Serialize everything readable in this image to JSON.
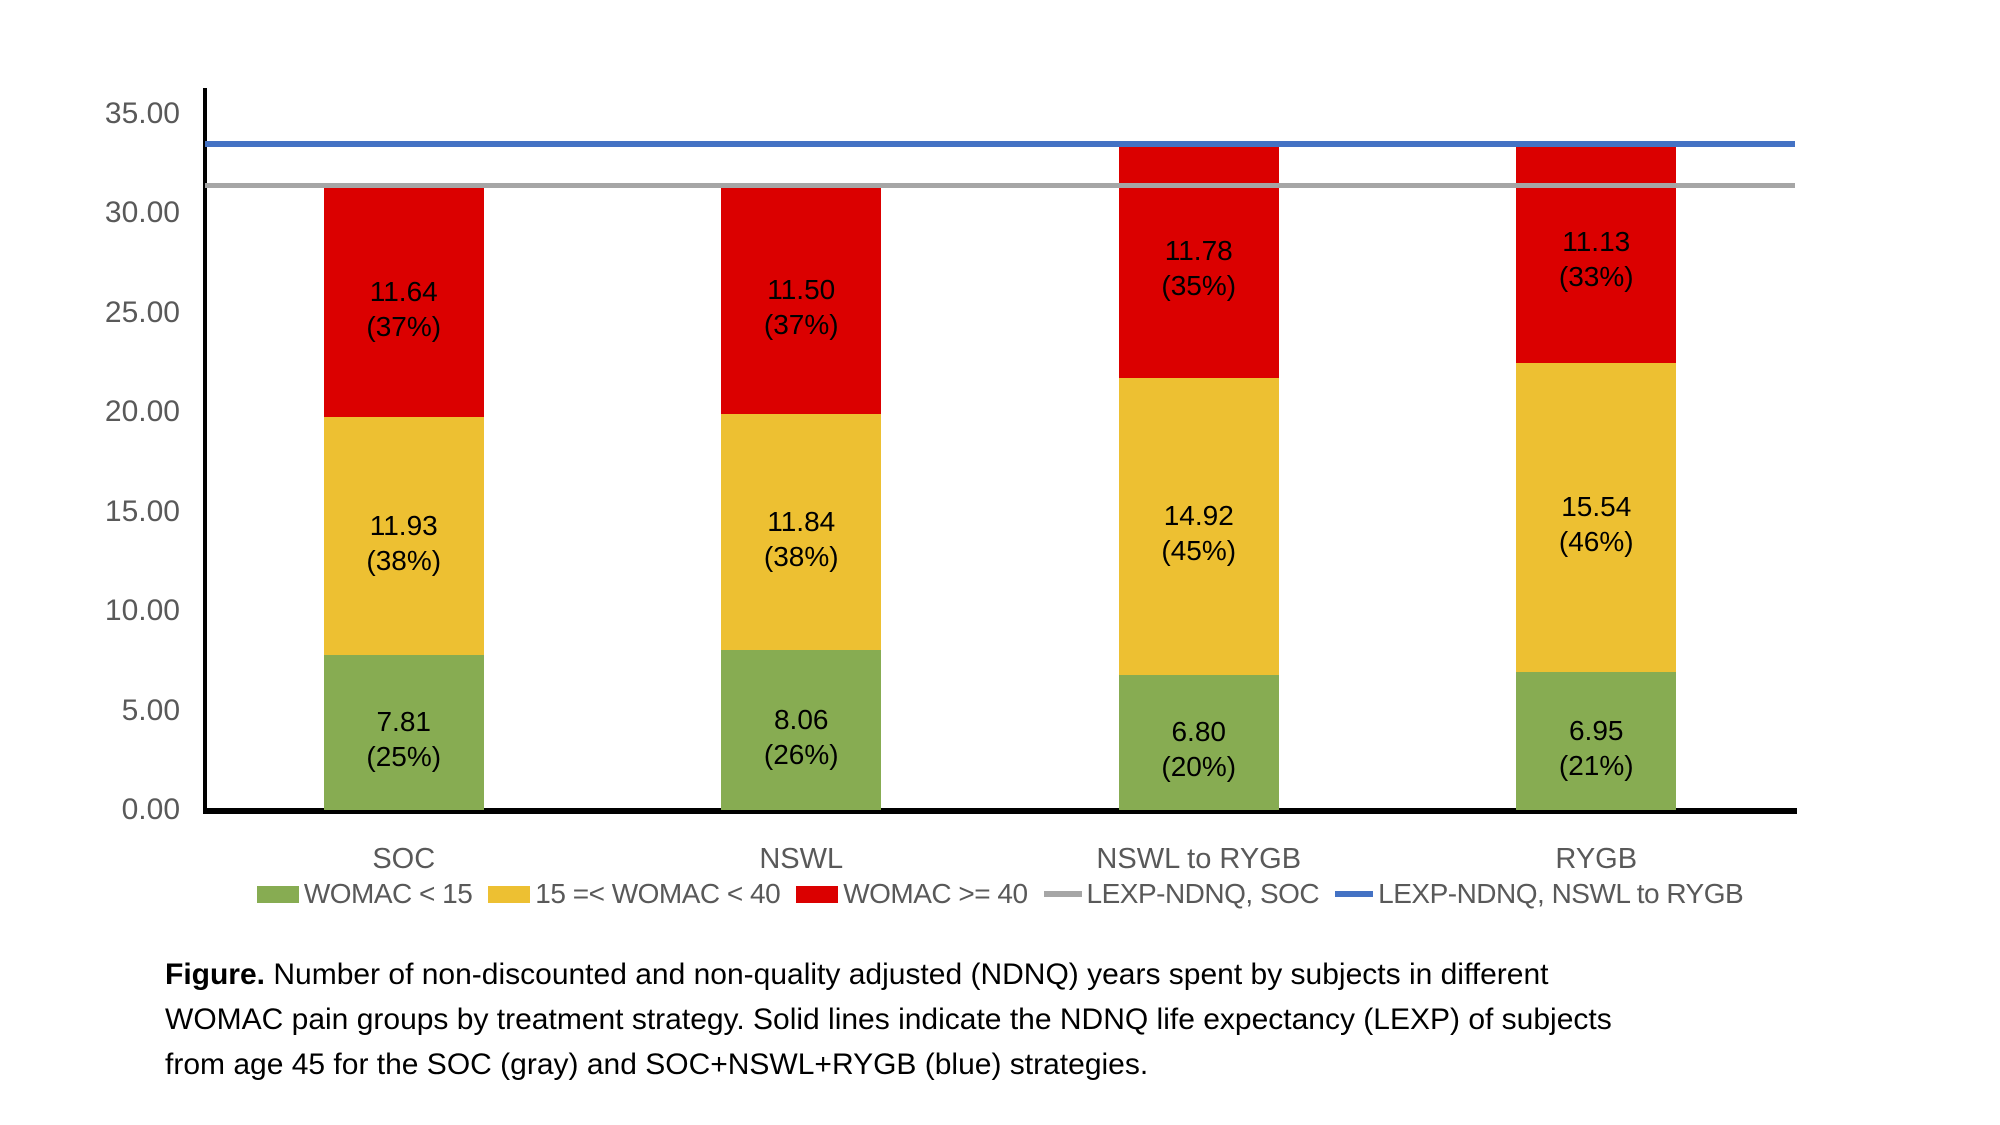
{
  "chart_data": {
    "type": "bar",
    "stacked": true,
    "title": "",
    "xlabel": "",
    "ylabel": "",
    "grid": false,
    "legend_position": "bottom",
    "ylim": [
      0,
      36.2
    ],
    "ytick_values": [
      0,
      5,
      10,
      15,
      20,
      25,
      30,
      35
    ],
    "ytick_labels": [
      "0.00",
      "5.00",
      "10.00",
      "15.00",
      "20.00",
      "25.00",
      "30.00",
      "35.00"
    ],
    "categories": [
      "SOC",
      "NSWL",
      "NSWL to RYGB",
      "RYGB"
    ],
    "series": [
      {
        "name": "WOMAC < 15",
        "color": "#87AC52",
        "values": [
          7.81,
          8.06,
          6.8,
          6.95
        ],
        "value_labels": [
          "7.81",
          "8.06",
          "6.80",
          "6.95"
        ],
        "pct_labels": [
          "(25%)",
          "(26%)",
          "(20%)",
          "(21%)"
        ]
      },
      {
        "name": "15 =< WOMAC < 40",
        "color": "#EDC032",
        "values": [
          11.93,
          11.84,
          14.92,
          15.54
        ],
        "value_labels": [
          "11.93",
          "11.84",
          "14.92",
          "15.54"
        ],
        "pct_labels": [
          "(38%)",
          "(38%)",
          "(45%)",
          "(46%)"
        ]
      },
      {
        "name": "WOMAC >= 40",
        "color": "#DB0000",
        "values": [
          11.64,
          11.5,
          11.78,
          11.13
        ],
        "value_labels": [
          "11.64",
          "11.50",
          "11.78",
          "11.13"
        ],
        "pct_labels": [
          "(37%)",
          "(37%)",
          "(35%)",
          "(33%)"
        ]
      }
    ],
    "ref_lines": [
      {
        "name": "LEXP-NDNQ, SOC",
        "color": "#A6A6A6",
        "value": 31.38,
        "thickness": 5
      },
      {
        "name": "LEXP-NDNQ, NSWL to RYGB",
        "color": "#4472C4",
        "value": 33.5,
        "thickness": 6
      }
    ]
  },
  "caption": {
    "label": "Figure.",
    "lines": [
      " Number of non-discounted and non-quality adjusted (NDNQ) years spent by subjects in different",
      "WOMAC pain groups by treatment strategy. Solid lines indicate the NDNQ life expectancy (LEXP) of subjects",
      "from age 45 for the SOC (gray) and SOC+NSWL+RYGB (blue) strategies."
    ]
  },
  "colors": {
    "background": "#FFFFFF",
    "axis": "#000000",
    "tick_text": "#595959",
    "category_text": "#595959",
    "legend_text": "#595959"
  }
}
